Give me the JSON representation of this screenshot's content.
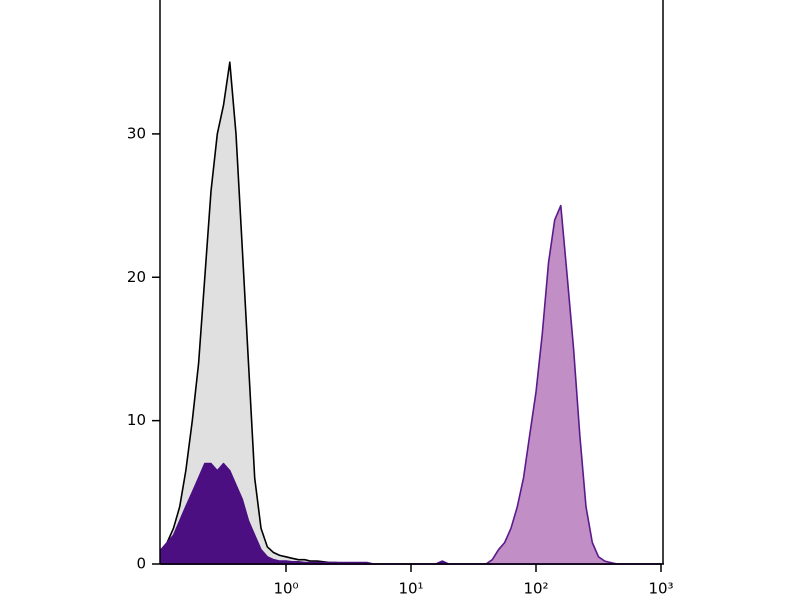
{
  "chart_data": {
    "type": "histogram-area",
    "xscale": "log",
    "xlim": [
      0.1,
      1000
    ],
    "ylim": [
      0,
      39.2
    ],
    "xticks": [
      {
        "value": 1,
        "label": "10⁰"
      },
      {
        "value": 10,
        "label": "10¹"
      },
      {
        "value": 100,
        "label": "10²"
      },
      {
        "value": 1000,
        "label": "10³"
      }
    ],
    "yticks": [
      0,
      10,
      20,
      30
    ],
    "x": [
      0.1,
      0.112,
      0.126,
      0.141,
      0.158,
      0.178,
      0.2,
      0.224,
      0.251,
      0.282,
      0.316,
      0.355,
      0.398,
      0.447,
      0.501,
      0.562,
      0.631,
      0.708,
      0.794,
      0.891,
      1,
      1.12,
      1.26,
      1.41,
      1.58,
      1.78,
      2,
      2.24,
      2.51,
      2.82,
      3.16,
      3.55,
      3.98,
      4.47,
      5.01,
      5.62,
      6.31,
      7.08,
      7.94,
      8.91,
      10,
      11.2,
      12.6,
      14.1,
      15.8,
      17.8,
      20,
      22.4,
      25.1,
      28.2,
      31.6,
      35.5,
      39.8,
      44.7,
      50.1,
      56.2,
      63.1,
      70.8,
      79.4,
      89.1,
      100,
      112,
      126,
      141,
      158,
      178,
      200,
      224,
      251,
      282,
      316,
      355,
      398,
      447,
      501,
      562,
      631,
      708,
      794,
      891,
      1000
    ],
    "series": [
      {
        "color": "#e0e0e0",
        "edgecolor": "#000000",
        "values": [
          0.8,
          1.5,
          2.5,
          4,
          6.5,
          10,
          14,
          20,
          26,
          30,
          32,
          35,
          30,
          22,
          14,
          6,
          2.5,
          1.2,
          0.8,
          0.6,
          0.5,
          0.4,
          0.3,
          0.3,
          0.2,
          0.2,
          0.15,
          0.1,
          0.1,
          0.05,
          0.05,
          0,
          0,
          0,
          0,
          0,
          0,
          0,
          0,
          0,
          0,
          0,
          0,
          0,
          0,
          0,
          0,
          0,
          0,
          0,
          0,
          0,
          0,
          0,
          0,
          0,
          0,
          0,
          0,
          0,
          0,
          0,
          0,
          0,
          0,
          0,
          0,
          0,
          0,
          0,
          0,
          0,
          0,
          0,
          0,
          0,
          0,
          0,
          0,
          0,
          0
        ]
      },
      {
        "color": "#c28ec6",
        "edgecolor": "#5a1a8c",
        "values": [
          0,
          0,
          0,
          0,
          0,
          0,
          0,
          0,
          0,
          0,
          0,
          0,
          0,
          0,
          0,
          0,
          0,
          0,
          0,
          0,
          0,
          0,
          0,
          0,
          0,
          0,
          0,
          0,
          0,
          0,
          0,
          0,
          0,
          0,
          0,
          0,
          0,
          0,
          0,
          0,
          0,
          0,
          0,
          0,
          0,
          0,
          0,
          0,
          0,
          0,
          0,
          0,
          0,
          0.3,
          1,
          1.5,
          2.5,
          4,
          6,
          9,
          12,
          16,
          21,
          24,
          25,
          20,
          15,
          9,
          4,
          1.5,
          0.5,
          0.2,
          0.1,
          0,
          0,
          0,
          0,
          0,
          0,
          0,
          0
        ]
      },
      {
        "color": "#4b0f82",
        "edgecolor": "#4b0f82",
        "values": [
          1,
          1.5,
          2,
          3,
          4,
          5,
          6,
          7,
          7,
          6.5,
          7,
          6.5,
          5.5,
          4.5,
          3,
          2,
          1,
          0.5,
          0.3,
          0.2,
          0.2,
          0.15,
          0.15,
          0.1,
          0.1,
          0.1,
          0.1,
          0.1,
          0.1,
          0.1,
          0.1,
          0.1,
          0.1,
          0.1,
          0,
          0,
          0,
          0,
          0,
          0,
          0,
          0,
          0,
          0,
          0,
          0.2,
          0,
          0,
          0,
          0,
          0,
          0,
          0,
          0,
          0,
          0,
          0,
          0,
          0,
          0,
          0,
          0,
          0,
          0,
          0,
          0,
          0,
          0,
          0,
          0,
          0,
          0,
          0,
          0,
          0,
          0,
          0,
          0,
          0,
          0,
          0
        ]
      }
    ]
  }
}
